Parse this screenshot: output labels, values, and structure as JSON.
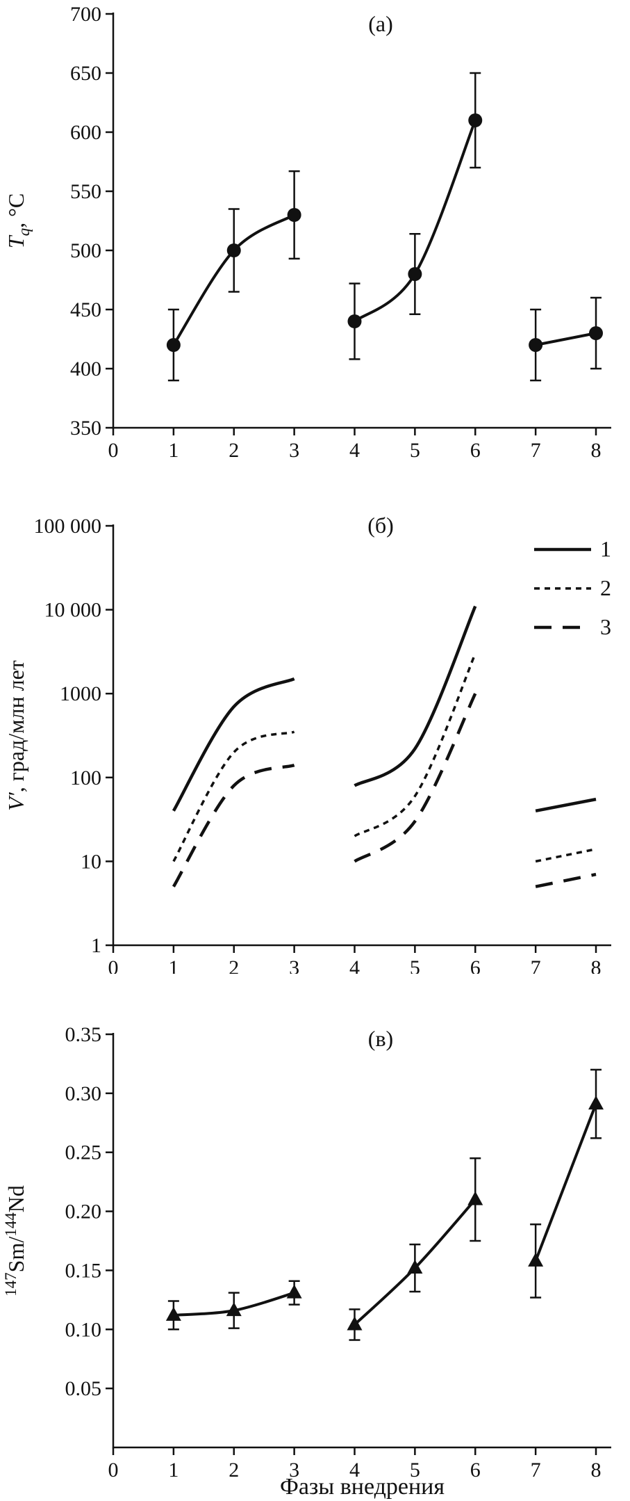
{
  "colors": {
    "ink": "#111111",
    "background": "#ffffff"
  },
  "xlabel": "Фазы внедрения",
  "xticks": [
    {
      "v": 0,
      "label": "0"
    },
    {
      "v": 1,
      "label": "1"
    },
    {
      "v": 2,
      "label": "2"
    },
    {
      "v": 3,
      "label": "3"
    },
    {
      "v": 4,
      "label": "4"
    },
    {
      "v": 5,
      "label": "5"
    },
    {
      "v": 6,
      "label": "6"
    },
    {
      "v": 7,
      "label": "7"
    },
    {
      "v": 8,
      "label": "8"
    }
  ],
  "chart_data": [
    {
      "id": "a",
      "type": "line",
      "panel_label": "(а)",
      "ylabel_parts": [
        {
          "text": "T",
          "italic": true
        },
        {
          "text": "q",
          "italic": true,
          "script": "sub"
        },
        {
          "text": ", °C"
        }
      ],
      "yscale": "linear",
      "ylim": [
        350,
        700
      ],
      "yticks": [
        {
          "v": 350,
          "label": "350"
        },
        {
          "v": 400,
          "label": "400"
        },
        {
          "v": 450,
          "label": "450"
        },
        {
          "v": 500,
          "label": "500"
        },
        {
          "v": 550,
          "label": "550"
        },
        {
          "v": 600,
          "label": "600"
        },
        {
          "v": 650,
          "label": "650"
        },
        {
          "v": 700,
          "label": "700"
        }
      ],
      "series": [
        {
          "name": "Tq",
          "dash": "solid",
          "marker": "circle",
          "x": [
            1,
            2,
            3,
            4,
            5,
            6,
            7,
            8
          ],
          "y": [
            420,
            500,
            530,
            440,
            480,
            610,
            420,
            430
          ],
          "yerr": [
            30,
            35,
            37,
            32,
            34,
            40,
            30,
            30
          ],
          "segments": [
            [
              0,
              1,
              2
            ],
            [
              3,
              4,
              5
            ],
            [
              6,
              7
            ]
          ]
        }
      ]
    },
    {
      "id": "b",
      "type": "line",
      "panel_label": "(б)",
      "ylabel_parts": [
        {
          "text": "V′",
          "italic": true
        },
        {
          "text": ", град/млн лет"
        }
      ],
      "yscale": "log",
      "ylim": [
        1,
        100000
      ],
      "yticks": [
        {
          "v": 1,
          "label": "1"
        },
        {
          "v": 10,
          "label": "10"
        },
        {
          "v": 100,
          "label": "100"
        },
        {
          "v": 1000,
          "label": "1000"
        },
        {
          "v": 10000,
          "label": "10 000"
        },
        {
          "v": 100000,
          "label": "100 000"
        }
      ],
      "legend": [
        {
          "label": "1",
          "dash": "solid"
        },
        {
          "label": "2",
          "dash": "short"
        },
        {
          "label": "3",
          "dash": "long"
        }
      ],
      "series": [
        {
          "name": "1",
          "dash": "solid",
          "x": [
            1,
            2,
            3,
            4,
            5,
            6,
            7,
            8
          ],
          "y": [
            40,
            700,
            1500,
            80,
            220,
            11000,
            40,
            55
          ],
          "segments": [
            [
              0,
              1,
              2
            ],
            [
              3,
              4,
              5
            ],
            [
              6,
              7
            ]
          ]
        },
        {
          "name": "2",
          "dash": "short",
          "x": [
            1,
            2,
            3,
            4,
            5,
            6,
            7,
            8
          ],
          "y": [
            10,
            200,
            350,
            20,
            60,
            3000,
            10,
            14
          ],
          "segments": [
            [
              0,
              1,
              2
            ],
            [
              3,
              4,
              5
            ],
            [
              6,
              7
            ]
          ]
        },
        {
          "name": "3",
          "dash": "long",
          "x": [
            1,
            2,
            3,
            4,
            5,
            6,
            7,
            8
          ],
          "y": [
            5,
            80,
            140,
            10,
            30,
            1000,
            5,
            7
          ],
          "segments": [
            [
              0,
              1,
              2
            ],
            [
              3,
              4,
              5
            ],
            [
              6,
              7
            ]
          ]
        }
      ]
    },
    {
      "id": "v",
      "type": "line",
      "panel_label": "(в)",
      "ylabel_parts": [
        {
          "text": "147",
          "script": "super"
        },
        {
          "text": "Sm/"
        },
        {
          "text": "144",
          "script": "super"
        },
        {
          "text": "Nd"
        }
      ],
      "yscale": "linear",
      "ylim": [
        0,
        0.35
      ],
      "yticks": [
        {
          "v": 0.05,
          "label": "0.05"
        },
        {
          "v": 0.1,
          "label": "0.10"
        },
        {
          "v": 0.15,
          "label": "0.15"
        },
        {
          "v": 0.2,
          "label": "0.20"
        },
        {
          "v": 0.25,
          "label": "0.25"
        },
        {
          "v": 0.3,
          "label": "0.30"
        },
        {
          "v": 0.35,
          "label": "0.35"
        }
      ],
      "xlabel": "Фазы внедрения",
      "series": [
        {
          "name": "147Sm/144Nd",
          "dash": "solid",
          "marker": "triangle",
          "x": [
            1,
            2,
            3,
            4,
            5,
            6,
            7,
            8
          ],
          "y": [
            0.112,
            0.116,
            0.131,
            0.104,
            0.152,
            0.21,
            0.158,
            0.291
          ],
          "yerr": [
            0.012,
            0.015,
            0.01,
            0.013,
            0.02,
            0.035,
            0.031,
            0.029
          ],
          "segments": [
            [
              0,
              1,
              2
            ],
            [
              3,
              4,
              5
            ],
            [
              6,
              7
            ]
          ]
        }
      ]
    }
  ]
}
